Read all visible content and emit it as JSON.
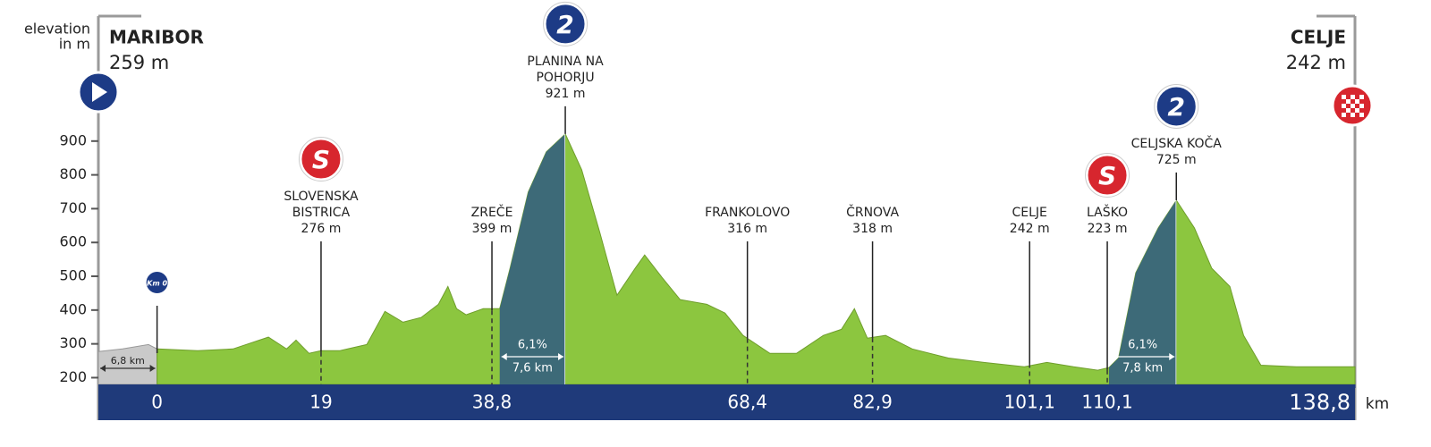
{
  "chart_data": {
    "type": "area",
    "y_label": [
      "elevation",
      "in m"
    ],
    "x_label": "km",
    "xlim": [
      -6.8,
      138.8
    ],
    "ylim": [
      180,
      1000
    ],
    "yticks": [
      200,
      300,
      400,
      500,
      600,
      700,
      800,
      900
    ],
    "xticks": [
      0,
      19,
      {
        "value": 38.8,
        "label": "38,8"
      },
      {
        "value": 68.4,
        "label": "68,4"
      },
      {
        "value": 82.9,
        "label": "82,9"
      },
      {
        "value": 101.1,
        "label": "101,1"
      },
      {
        "value": 110.1,
        "label": "110,1"
      },
      {
        "value": 138.8,
        "label": "138,8"
      }
    ],
    "band_color": "#1f3a7a",
    "neutral": {
      "label": "6,8 km",
      "x": [
        -6.8,
        -4,
        -1,
        0
      ],
      "values": [
        277,
        285,
        298,
        285
      ],
      "color": "#c9c9c9"
    },
    "km0_icon": "Km 0",
    "series": [
      {
        "color": "#8cc63f",
        "x": [
          0,
          4.7,
          8.8,
          12.9,
          15,
          16.1,
          17.6,
          19,
          21.2,
          24.3,
          26.4,
          28.5,
          30.6,
          32.6,
          33.7,
          34.7,
          35.8,
          37.8,
          39.7,
          40.9,
          43,
          45.1,
          47.3,
          49.2,
          51.3,
          53.3,
          55.4,
          56.5,
          58.5,
          60.6,
          63.7,
          65.8,
          67.9,
          71,
          74.1,
          77.2,
          79.3,
          80.8,
          82.3,
          84.4,
          87.5,
          91.7,
          95.8,
          100.5,
          103.1,
          106.2,
          109,
          110.3,
          111.4,
          113.4,
          116,
          118.1,
          120.2,
          122.2,
          124.3,
          125.9,
          127.9,
          132,
          138.8
        ],
        "values": [
          285,
          280,
          285,
          320,
          285,
          311,
          272,
          280,
          280,
          298,
          396,
          364,
          378,
          417,
          470,
          404,
          386,
          404,
          404,
          524,
          749,
          868,
          921,
          815,
          630,
          444,
          524,
          563,
          497,
          431,
          417,
          391,
          325,
          272,
          272,
          325,
          343,
          404,
          317,
          325,
          285,
          258,
          245,
          232,
          245,
          232,
          222,
          230,
          258,
          510,
          643,
          725,
          643,
          524,
          470,
          325,
          237,
          232,
          232
        ]
      }
    ],
    "climbs": [
      {
        "start": 39.7,
        "end": 47.3,
        "grade": "6,1%",
        "length": "7,6 km",
        "color": "#3d6a78"
      },
      {
        "start": 110.3,
        "end": 118.1,
        "grade": "6,1%",
        "length": "7,8 km",
        "color": "#3d6a78"
      }
    ],
    "start": {
      "name": "MARIBOR",
      "elevation": "259 m"
    },
    "finish": {
      "name": "CELJE",
      "elevation": "242 m"
    },
    "points": [
      {
        "name": [
          "SLOVENSKA",
          "BISTRICA"
        ],
        "elevation": {
          "value": 276,
          "label": "276 m"
        },
        "km": 19,
        "icon": "S",
        "icon_color": "#d7262e",
        "dashed": true
      },
      {
        "name": [
          "ZREČE"
        ],
        "elevation": {
          "value": 399,
          "label": "399 m"
        },
        "km": 38.8,
        "dashed": true
      },
      {
        "name": [
          "PLANINA NA",
          "POHORJU"
        ],
        "elevation": {
          "value": 921,
          "label": "921 m"
        },
        "km": 47.3,
        "icon": "2",
        "icon_color": "#1d3b86",
        "dashed": false
      },
      {
        "name": [
          "FRANKOLOVO"
        ],
        "elevation": {
          "value": 316,
          "label": "316 m"
        },
        "km": 68.4,
        "dashed": true
      },
      {
        "name": [
          "ČRNOVA"
        ],
        "elevation": {
          "value": 318,
          "label": "318 m"
        },
        "km": 82.9,
        "dashed": true
      },
      {
        "name": [
          "CELJE"
        ],
        "elevation": {
          "value": 242,
          "label": "242 m"
        },
        "km": 101.1,
        "dashed": true
      },
      {
        "name": [
          "LAŠKO"
        ],
        "elevation": {
          "value": 223,
          "label": "223 m"
        },
        "km": 110.1,
        "icon": "S",
        "icon_color": "#d7262e",
        "dashed": true
      },
      {
        "name": [
          "CELJSKA KOČA"
        ],
        "elevation": {
          "value": 725,
          "label": "725 m"
        },
        "km": 118.1,
        "icon": "2",
        "icon_color": "#1d3b86",
        "dashed": false
      }
    ]
  }
}
